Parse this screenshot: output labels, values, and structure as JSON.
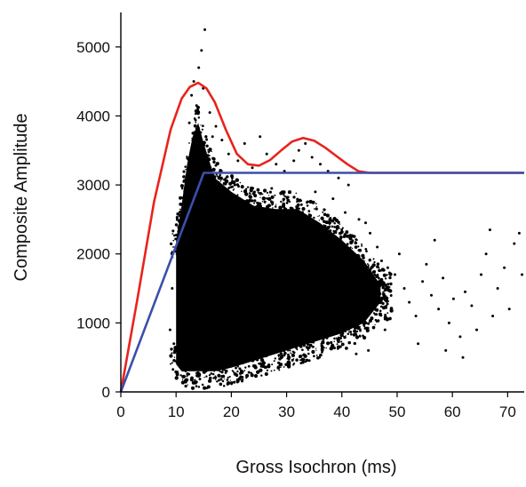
{
  "chart_data": {
    "type": "scatter",
    "title": "",
    "xlabel": "Gross Isochron (ms)",
    "ylabel": "Composite Amplitude",
    "xlim": [
      0,
      73
    ],
    "ylim": [
      0,
      5500
    ],
    "x_ticks": [
      0,
      10,
      20,
      30,
      40,
      50,
      60,
      70
    ],
    "y_ticks": [
      0,
      1000,
      2000,
      3000,
      4000,
      5000
    ],
    "grid": false,
    "legend": "none",
    "series": [
      {
        "kind": "points",
        "color": "#000000",
        "dense_region": {
          "x": [
            10,
            11,
            12,
            13,
            14,
            15,
            17,
            20,
            24,
            28,
            32,
            36,
            40,
            44,
            47
          ],
          "y_low": [
            400,
            300,
            300,
            300,
            300,
            300,
            300,
            350,
            450,
            550,
            650,
            750,
            850,
            1000,
            1300
          ],
          "y_high": [
            2200,
            2700,
            3300,
            3700,
            3900,
            3600,
            3100,
            2900,
            2700,
            2650,
            2650,
            2450,
            2200,
            1900,
            1550
          ]
        },
        "points": [
          [
            13.2,
            4500
          ],
          [
            14.1,
            4700
          ],
          [
            14.6,
            4950
          ],
          [
            15.2,
            5250
          ],
          [
            12.8,
            4300
          ],
          [
            13.7,
            4150
          ],
          [
            14.9,
            4400
          ],
          [
            16.1,
            4050
          ],
          [
            17.2,
            3850
          ],
          [
            18.3,
            3650
          ],
          [
            19.5,
            3450
          ],
          [
            21.2,
            3350
          ],
          [
            23.8,
            3250
          ],
          [
            26.4,
            3450
          ],
          [
            28.1,
            3300
          ],
          [
            29.6,
            3200
          ],
          [
            31.3,
            3350
          ],
          [
            32.2,
            3500
          ],
          [
            33.4,
            3600
          ],
          [
            34.6,
            3400
          ],
          [
            36.1,
            3300
          ],
          [
            37.5,
            3200
          ],
          [
            39.4,
            3100
          ],
          [
            41.2,
            3000
          ],
          [
            44.3,
            2450
          ],
          [
            45.1,
            2300
          ],
          [
            46.4,
            2100
          ],
          [
            47.2,
            1900
          ],
          [
            48.3,
            1800
          ],
          [
            49.6,
            1700
          ],
          [
            50.4,
            2000
          ],
          [
            51.3,
            1500
          ],
          [
            52.2,
            1300
          ],
          [
            53.4,
            1100
          ],
          [
            54.6,
            1600
          ],
          [
            55.3,
            1850
          ],
          [
            56.2,
            1400
          ],
          [
            57.5,
            1200
          ],
          [
            58.3,
            1650
          ],
          [
            59.4,
            1000
          ],
          [
            60.2,
            1350
          ],
          [
            61.4,
            800
          ],
          [
            62.3,
            1450
          ],
          [
            63.5,
            1250
          ],
          [
            64.4,
            900
          ],
          [
            65.2,
            1700
          ],
          [
            66.1,
            2000
          ],
          [
            67.3,
            1100
          ],
          [
            68.2,
            1500
          ],
          [
            69.4,
            1800
          ],
          [
            70.3,
            1200
          ],
          [
            71.2,
            2150
          ],
          [
            72.1,
            2300
          ],
          [
            72.6,
            1700
          ],
          [
            58.8,
            600
          ],
          [
            61.9,
            500
          ],
          [
            53.8,
            700
          ],
          [
            47.8,
            900
          ],
          [
            56.8,
            2200
          ],
          [
            66.8,
            2350
          ],
          [
            44.8,
            600
          ],
          [
            42.6,
            550
          ],
          [
            9.6,
            700
          ],
          [
            8.9,
            900
          ],
          [
            9.3,
            1500
          ],
          [
            10.2,
            2500
          ],
          [
            11.6,
            2900
          ],
          [
            25.2,
            3700
          ],
          [
            22.4,
            3600
          ],
          [
            38.4,
            2800
          ],
          [
            40.6,
            2600
          ],
          [
            43.1,
            2500
          ],
          [
            12.4,
            3900
          ],
          [
            16.6,
            3700
          ],
          [
            35.2,
            2900
          ],
          [
            27.3,
            2950
          ]
        ]
      },
      {
        "kind": "line",
        "color": "#e8231c",
        "x": [
          0,
          3,
          6,
          9,
          11,
          12.5,
          14,
          15.5,
          17,
          19,
          21,
          23,
          25,
          27,
          29,
          31,
          33,
          35,
          37,
          39,
          41,
          43,
          45,
          50,
          60,
          73
        ],
        "y": [
          0,
          1350,
          2750,
          3800,
          4250,
          4420,
          4480,
          4400,
          4200,
          3800,
          3450,
          3300,
          3280,
          3360,
          3500,
          3630,
          3680,
          3640,
          3540,
          3420,
          3300,
          3200,
          3175,
          3175,
          3175,
          3175
        ]
      },
      {
        "kind": "line",
        "color": "#3c4fa8",
        "x": [
          0,
          15,
          73
        ],
        "y": [
          0,
          3175,
          3175
        ]
      }
    ]
  }
}
